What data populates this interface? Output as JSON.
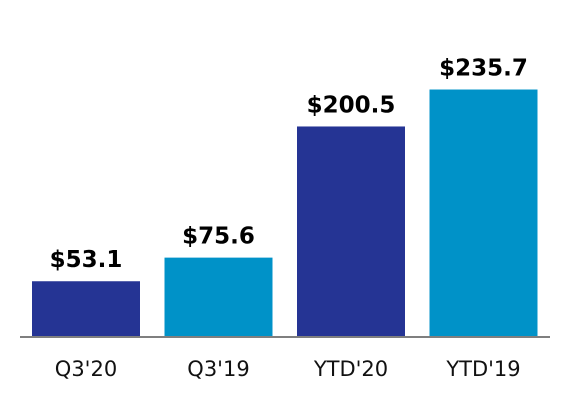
{
  "chart_data": {
    "type": "bar",
    "categories": [
      "Q3'20",
      "Q3'19",
      "YTD'20",
      "YTD'19"
    ],
    "values": [
      53.1,
      75.6,
      200.5,
      235.7
    ],
    "value_labels": [
      "$53.1",
      "$75.6",
      "$200.5",
      "$235.7"
    ],
    "colors": [
      "#253494",
      "#0092c8",
      "#253494",
      "#0092c8"
    ],
    "title": "",
    "xlabel": "",
    "ylabel": "",
    "ylim": [
      0,
      240
    ],
    "grid": false,
    "legend": "none"
  },
  "colors": {
    "axis": "#7f7f7f"
  }
}
